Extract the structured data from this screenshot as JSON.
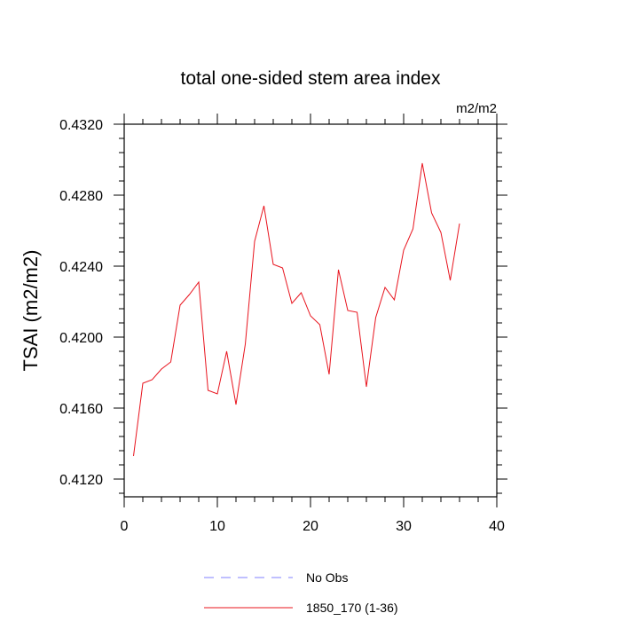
{
  "chart_data": {
    "type": "line",
    "title": "total one-sided stem area index",
    "units": "m2/m2",
    "ylabel": "TSAI  (m2/m2)",
    "xlabel": "",
    "xlim": [
      0,
      40
    ],
    "ylim": [
      0.411,
      0.432
    ],
    "xticks": [
      0,
      10,
      20,
      30,
      40
    ],
    "xtick_labels": [
      "0",
      "10",
      "20",
      "30",
      "40"
    ],
    "yticks": [
      0.412,
      0.416,
      0.42,
      0.424,
      0.428,
      0.432
    ],
    "ytick_labels": [
      "0.4120",
      "0.4160",
      "0.4200",
      "0.4240",
      "0.4280",
      "0.4320"
    ],
    "grid": false,
    "legend_position": "bottom",
    "series": [
      {
        "name": "1850_170 (1-36)",
        "color": "#e8141e",
        "x": [
          1,
          2,
          3,
          4,
          5,
          6,
          7,
          8,
          9,
          10,
          11,
          12,
          13,
          14,
          15,
          16,
          17,
          18,
          19,
          20,
          21,
          22,
          23,
          24,
          25,
          26,
          27,
          28,
          29,
          30,
          31,
          32,
          33,
          34,
          35,
          36
        ],
        "values": [
          0.4133,
          0.4174,
          0.4176,
          0.4182,
          0.4186,
          0.4218,
          0.4224,
          0.4231,
          0.417,
          0.4168,
          0.4192,
          0.4162,
          0.4196,
          0.4254,
          0.4274,
          0.4241,
          0.4239,
          0.4219,
          0.4225,
          0.4212,
          0.4207,
          0.4179,
          0.4238,
          0.4215,
          0.4214,
          0.4172,
          0.4211,
          0.4228,
          0.4221,
          0.4249,
          0.4261,
          0.4298,
          0.427,
          0.4259,
          0.4232,
          0.4264
        ]
      }
    ],
    "legend": [
      {
        "label": "No Obs",
        "color": "#8080ff",
        "style": "dashed"
      },
      {
        "label": "1850_170 (1-36)",
        "color": "#e8141e",
        "style": "solid"
      }
    ]
  }
}
